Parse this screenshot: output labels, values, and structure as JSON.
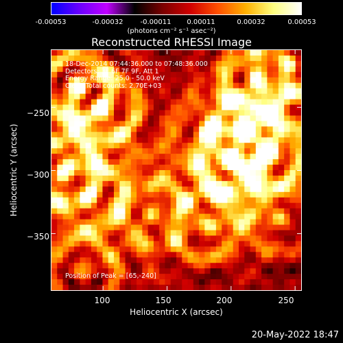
{
  "colorbar": {
    "ticks": [
      "-0.00053",
      "-0.00032",
      "-0.00011",
      "0.00011",
      "0.00032",
      "0.00053"
    ],
    "units": "(photons cm⁻² s⁻¹ asec⁻²)",
    "colors": [
      "#0000ff",
      "#6a00ff",
      "#c000ff",
      "#000000",
      "#7a0000",
      "#d00000",
      "#ff5000",
      "#ffb000",
      "#ffff80",
      "#ffffff"
    ]
  },
  "annotation": {
    "lines": [
      "18-Dec-2014 07:44:36.000 to 07:48:36.000",
      "Detectors: 3F 6F 7F 9F, Att 1",
      "Energy Range: 25.0 - 50.0 keV",
      "Clean    Total counts: 2.70E+03"
    ],
    "peak": "Position of Peak = [65,-240]"
  },
  "datestamp": "20-May-2022 18:47",
  "chart_data": {
    "type": "heatmap",
    "title": "Reconstructed RHESSI Image",
    "xlabel": "Heliocentric X (arcsec)",
    "ylabel": "Heliocentric Y (arcsec)",
    "xlim": [
      60,
      255
    ],
    "ylim": [
      -395,
      -205
    ],
    "xticks": [
      "100",
      "150",
      "200",
      "250"
    ],
    "yticks": [
      "−250",
      "−300",
      "−350"
    ],
    "xtick_values": [
      100,
      150,
      200,
      250
    ],
    "ytick_values": [
      -250,
      -300,
      -350
    ],
    "zlim": [
      -0.00053,
      0.00053
    ],
    "peak_position": [
      65,
      -240
    ],
    "sources": [
      {
        "x": 80,
        "y": -235,
        "amp": 0.00053
      },
      {
        "x": 100,
        "y": -250,
        "amp": 0.0004
      },
      {
        "x": 70,
        "y": -300,
        "amp": 0.00045
      },
      {
        "x": 90,
        "y": -320,
        "amp": 0.00035
      },
      {
        "x": 220,
        "y": -230,
        "amp": 0.0004
      },
      {
        "x": 245,
        "y": -215,
        "amp": 0.0004
      },
      {
        "x": 200,
        "y": -290,
        "amp": 0.0005
      },
      {
        "x": 210,
        "y": -270,
        "amp": 0.00045
      },
      {
        "x": 180,
        "y": -345,
        "amp": 0.00042
      },
      {
        "x": 240,
        "y": -340,
        "amp": 0.00035
      },
      {
        "x": 140,
        "y": -335,
        "amp": 0.0003
      },
      {
        "x": 85,
        "y": -380,
        "amp": 0.0004
      },
      {
        "x": 230,
        "y": -285,
        "amp": 0.00025
      }
    ]
  }
}
